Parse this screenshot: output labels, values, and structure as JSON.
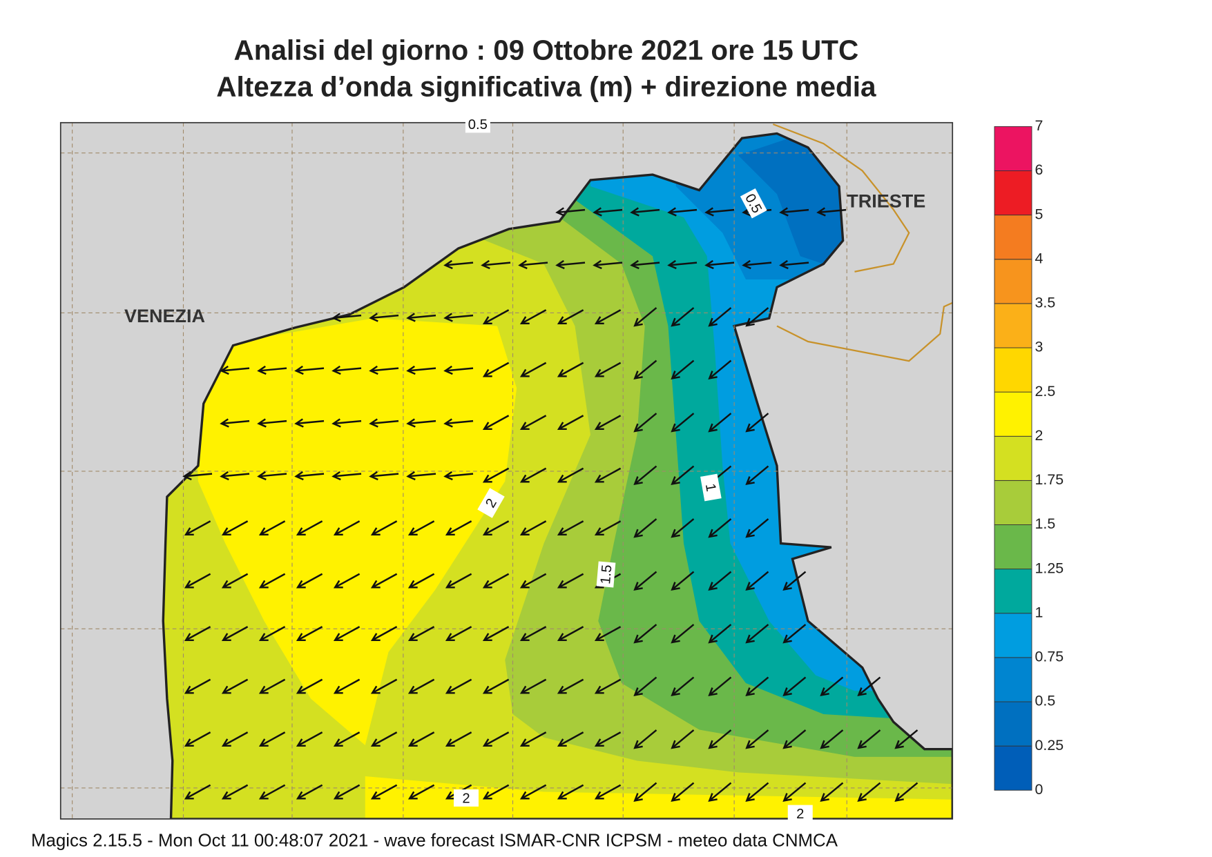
{
  "header": {
    "title": "Analisi del giorno :  09  Ottobre  2021   ore 15 UTC",
    "subtitle": "Altezza d’onda significativa (m) + direzione media"
  },
  "map": {
    "places": [
      "VENEZIA",
      "TRIESTE"
    ],
    "contour_labels": [
      "0.5",
      "1",
      "1.5",
      "2",
      "2",
      "2",
      "0.5"
    ]
  },
  "legend": {
    "levels": [
      "0",
      "0.25",
      "0.5",
      "0.75",
      "1",
      "1.25",
      "1.5",
      "1.75",
      "2",
      "2.5",
      "3",
      "3.5",
      "4",
      "5",
      "6",
      "7"
    ],
    "colors": [
      "#005eb8",
      "#0070c0",
      "#0085d0",
      "#009de0",
      "#00a99d",
      "#6ab84a",
      "#a8cc3a",
      "#d4e021",
      "#fff200",
      "#ffd700",
      "#fbb018",
      "#f7941d",
      "#f47c20",
      "#ed1c24",
      "#ec1461"
    ]
  },
  "footer": "Magics 2.15.5 - Mon Oct 11 00:48:07 2021 - wave forecast  ISMAR-CNR  ICPSM - meteo data   CNMCA"
}
